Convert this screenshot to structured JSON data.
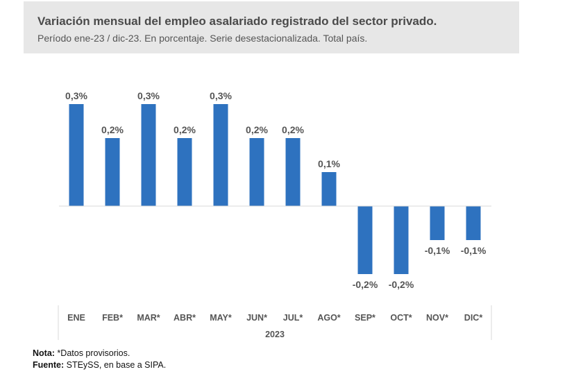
{
  "header": {
    "title": "Variación mensual del empleo asalariado registrado del sector privado.",
    "subtitle": "Período ene-23 / dic-23. En porcentaje. Serie desestacionalizada. Total país."
  },
  "chart_data": {
    "type": "bar",
    "title": "Variación mensual del empleo asalariado registrado del sector privado.",
    "subtitle": "Período ene-23 / dic-23. En porcentaje. Serie desestacionalizada. Total país.",
    "categories": [
      "ENE",
      "FEB*",
      "MAR*",
      "ABR*",
      "MAY*",
      "JUN*",
      "JUL*",
      "AGO*",
      "SEP*",
      "OCT*",
      "NOV*",
      "DIC*"
    ],
    "values": [
      0.3,
      0.2,
      0.3,
      0.2,
      0.3,
      0.2,
      0.2,
      0.1,
      -0.2,
      -0.2,
      -0.1,
      -0.1
    ],
    "data_labels": [
      "0,3%",
      "0,2%",
      "0,3%",
      "0,2%",
      "0,3%",
      "0,2%",
      "0,2%",
      "0,1%",
      "-0,2%",
      "-0,2%",
      "-0,1%",
      "-0,1%"
    ],
    "xlabel": "2023",
    "ylabel": "",
    "ylim": [
      -0.3,
      0.4
    ],
    "grid": false,
    "bar_color": "#2e72bf"
  },
  "notes": {
    "nota_label": "Nota:",
    "nota_text": " *Datos provisorios.",
    "fuente_label": "Fuente:",
    "fuente_text": " STEySS, en base a SIPA."
  }
}
